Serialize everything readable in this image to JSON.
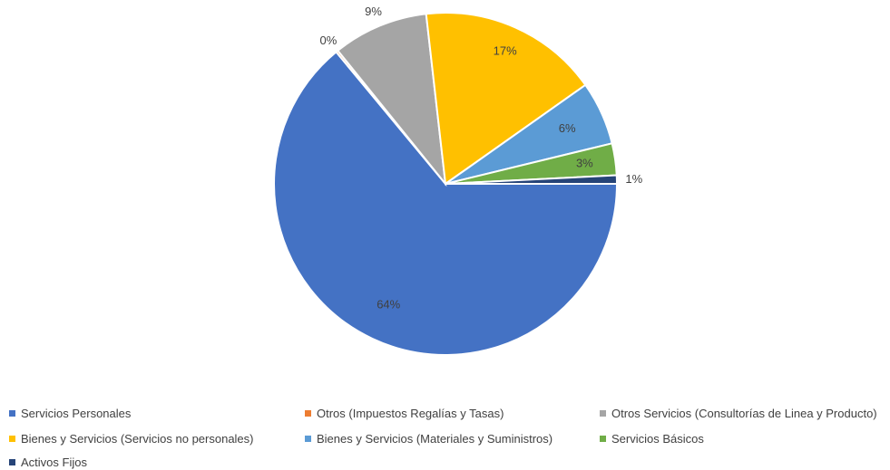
{
  "chart_data": {
    "type": "pie",
    "series": [
      {
        "name": "Servicios Personales",
        "value": 64,
        "label": "64%",
        "color": "#4472C4"
      },
      {
        "name": "Otros (Impuestos Regalías y Tasas)",
        "value": 0.2,
        "label": "0%",
        "color": "#ED7D31"
      },
      {
        "name": "Otros Servicios (Consultorías de Linea y Producto)",
        "value": 9,
        "label": "9%",
        "color": "#A5A5A5"
      },
      {
        "name": "Bienes y Servicios (Servicios no personales)",
        "value": 17,
        "label": "17%",
        "color": "#FFC000"
      },
      {
        "name": "Bienes y Servicios (Materiales y Suministros)",
        "value": 6,
        "label": "6%",
        "color": "#5B9BD5"
      },
      {
        "name": "Servicios Básicos",
        "value": 3,
        "label": "3%",
        "color": "#70AD47"
      },
      {
        "name": "Activos Fijos",
        "value": 0.8,
        "label": "1%",
        "color": "#264478"
      }
    ],
    "legend_position": "bottom"
  }
}
